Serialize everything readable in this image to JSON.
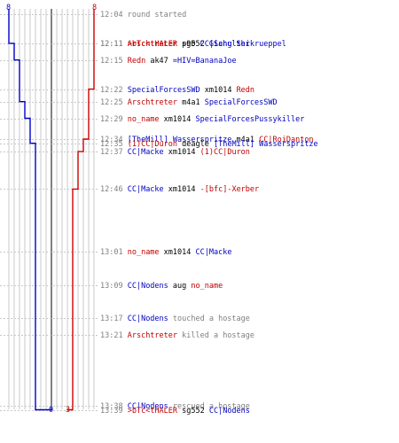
{
  "colors": {
    "team_a": "#0000cc",
    "team_b": "#cc0000",
    "grid": "#c8c8c8",
    "center": "#808080",
    "time_text": "#808080",
    "team_a_text": "#0000c0",
    "team_b_text": "#c00000"
  },
  "scores": {
    "team_a_start": "8",
    "team_b_start": "8",
    "team_a_end": "0",
    "team_b_end": "3"
  },
  "chart_data": {
    "type": "line",
    "x_label": "",
    "y_label": "",
    "player_count_range": [
      0,
      8
    ],
    "time_range": [
      "12:04",
      "13:39"
    ],
    "series": [
      {
        "color": "#0000cc",
        "start": 8,
        "end": 0,
        "points": [
          {
            "time": "12:04",
            "value": 8
          },
          {
            "time": "12:11",
            "value": 7
          },
          {
            "time": "12:15",
            "value": 6
          },
          {
            "time": "12:25",
            "value": 5
          },
          {
            "time": "12:29",
            "value": 4
          },
          {
            "time": "12:35",
            "value": 3
          },
          {
            "time": "13:39",
            "value": 0
          }
        ]
      },
      {
        "color": "#cc0000",
        "start": 8,
        "end": 3,
        "points": [
          {
            "time": "12:04",
            "value": 8
          },
          {
            "time": "12:22",
            "value": 7
          },
          {
            "time": "12:34",
            "value": 6
          },
          {
            "time": "12:37",
            "value": 5
          },
          {
            "time": "12:46",
            "value": 4
          },
          {
            "time": "13:39",
            "value": 3
          }
        ]
      }
    ]
  },
  "events": [
    {
      "time": "12:04",
      "parts": [
        {
          "text": "round started",
          "color": "gray"
        }
      ]
    },
    {
      "time": "12:11",
      "parts": [
        {
          "text": ">bTc<tHALER",
          "color": "red"
        },
        {
          "text": " sg552 ",
          "color": "black"
        },
        {
          "text": "Giang Shi",
          "color": "blue"
        }
      ]
    },
    {
      "time": "12:11",
      "parts": [
        {
          "text": "Arschtreter",
          "color": "red"
        },
        {
          "text": " p90 ",
          "color": "black"
        },
        {
          "text": "CC|Schulterkrueppel",
          "color": "blue"
        }
      ]
    },
    {
      "time": "12:15",
      "parts": [
        {
          "text": "Redn",
          "color": "red"
        },
        {
          "text": " ak47 ",
          "color": "black"
        },
        {
          "text": "=HIV=BananaJoe",
          "color": "blue"
        }
      ]
    },
    {
      "time": "12:22",
      "parts": [
        {
          "text": "SpecialForcesSWD",
          "color": "blue"
        },
        {
          "text": " xm1014 ",
          "color": "black"
        },
        {
          "text": "Redn",
          "color": "red"
        }
      ]
    },
    {
      "time": "12:25",
      "parts": [
        {
          "text": "Arschtreter",
          "color": "red"
        },
        {
          "text": " m4a1 ",
          "color": "black"
        },
        {
          "text": "SpecialForcesSWD",
          "color": "blue"
        }
      ]
    },
    {
      "time": "12:29",
      "parts": [
        {
          "text": "no_name",
          "color": "red"
        },
        {
          "text": " xm1014 ",
          "color": "black"
        },
        {
          "text": "SpecialForcesPussykiller",
          "color": "blue"
        }
      ]
    },
    {
      "time": "12:34",
      "parts": [
        {
          "text": "[TheMill] Wasserspritze",
          "color": "blue"
        },
        {
          "text": " m4a1 ",
          "color": "black"
        },
        {
          "text": "CC|RoiDanton",
          "color": "red"
        }
      ]
    },
    {
      "time": "12:35",
      "parts": [
        {
          "text": "(1)CC|Duron",
          "color": "red"
        },
        {
          "text": " deagle ",
          "color": "black"
        },
        {
          "text": "[TheMill] Wasserspritze",
          "color": "blue"
        }
      ]
    },
    {
      "time": "12:37",
      "parts": [
        {
          "text": "CC|Macke",
          "color": "blue"
        },
        {
          "text": " xm1014 ",
          "color": "black"
        },
        {
          "text": "(1)CC|Duron",
          "color": "red"
        }
      ]
    },
    {
      "time": "12:46",
      "parts": [
        {
          "text": "CC|Macke",
          "color": "blue"
        },
        {
          "text": " xm1014 ",
          "color": "black"
        },
        {
          "text": "-[bfc]-Xerber",
          "color": "red"
        }
      ]
    },
    {
      "time": "13:01",
      "parts": [
        {
          "text": "no_name",
          "color": "red"
        },
        {
          "text": " xm1014 ",
          "color": "black"
        },
        {
          "text": "CC|Macke",
          "color": "blue"
        }
      ]
    },
    {
      "time": "13:09",
      "parts": [
        {
          "text": "CC|Nodens",
          "color": "blue"
        },
        {
          "text": " aug ",
          "color": "black"
        },
        {
          "text": "no_name",
          "color": "red"
        }
      ]
    },
    {
      "time": "13:17",
      "parts": [
        {
          "text": "CC|Nodens",
          "color": "blue"
        },
        {
          "text": " touched a hostage",
          "color": "gray"
        }
      ]
    },
    {
      "time": "13:21",
      "parts": [
        {
          "text": "Arschtreter",
          "color": "red"
        },
        {
          "text": " killed a hostage",
          "color": "gray"
        }
      ]
    },
    {
      "time": "13:38",
      "parts": [
        {
          "text": "CC|Nodens",
          "color": "blue"
        },
        {
          "text": " rescued a hostage",
          "color": "gray"
        }
      ]
    },
    {
      "time": "13:39",
      "parts": [
        {
          "text": ">bTc<tHALER",
          "color": "red"
        },
        {
          "text": " sg552 ",
          "color": "black"
        },
        {
          "text": "CC|Nodens",
          "color": "blue"
        }
      ]
    }
  ]
}
